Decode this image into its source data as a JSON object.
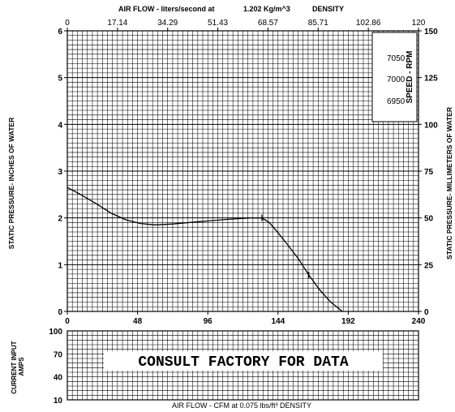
{
  "chart_data": [
    {
      "type": "line",
      "title": "",
      "top_axis": {
        "label": "AIR FLOW - liters/second at",
        "density_value": "1.202 Kg/m^3",
        "density_label": "DENSITY",
        "ticks": [
          "0",
          "17.14",
          "34.29",
          "51.43",
          "68.57",
          "85.71",
          "102.86",
          "120"
        ]
      },
      "xlabel": "AIR FLOW - CFM at 0.075 lbs/ft³ DENSITY",
      "xlim": [
        0,
        240
      ],
      "xticks": [
        "0",
        "48",
        "96",
        "144",
        "192",
        "240"
      ],
      "ylabel": "STATIC PRESSURE- INCHES OF WATER",
      "ylim": [
        0,
        6
      ],
      "yticks": [
        "0",
        "1",
        "2",
        "3",
        "4",
        "5",
        "6"
      ],
      "y2label": "STATIC PRESSURE- MILLIMETERS OF WATER",
      "y2ticks": [
        "0",
        "25",
        "50",
        "75",
        "100",
        "125",
        "150"
      ],
      "speed": {
        "label": "SPEED - RPM",
        "values": [
          "7050",
          "7000",
          "6950"
        ]
      },
      "grid": true,
      "series": [
        {
          "x": [
            0,
            8,
            20,
            30,
            40,
            50,
            60,
            72,
            90,
            110,
            125,
            133,
            138,
            143,
            150,
            158,
            165,
            172,
            180,
            188
          ],
          "y": [
            2.65,
            2.52,
            2.3,
            2.1,
            1.96,
            1.88,
            1.85,
            1.87,
            1.92,
            1.97,
            2.0,
            2.0,
            1.9,
            1.72,
            1.45,
            1.12,
            0.78,
            0.48,
            0.2,
            0.0
          ]
        }
      ]
    },
    {
      "type": "line",
      "ylabel": "CURRENT INPUT AMPS",
      "yticks": [
        "10",
        "40",
        "70",
        "100"
      ],
      "grid": true,
      "annotation": "CONSULT FACTORY FOR DATA",
      "series": []
    }
  ]
}
